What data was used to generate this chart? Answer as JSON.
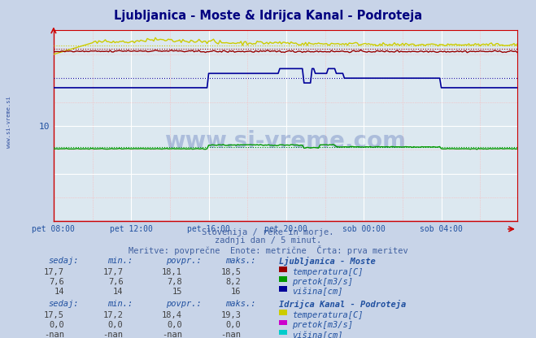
{
  "title": "Ljubljanica - Moste & Idrijca Kanal - Podroteja",
  "title_color": "#000080",
  "bg_color": "#c8d4e8",
  "plot_bg_color": "#dce8f0",
  "watermark_text": "www.si-vreme.com",
  "subtitle1": "Slovenija / reke in morje.",
  "subtitle2": "zadnji dan / 5 minut.",
  "subtitle3": "Meritve: povprečne  Enote: metrične  Črta: prva meritev",
  "subtitle_color": "#4060a0",
  "moste_temp_color": "#990000",
  "moste_pretok_color": "#009900",
  "moste_visina_color": "#000099",
  "idrijca_temp_color": "#cccc00",
  "idrijca_pretok_color": "#cc00cc",
  "idrijca_visina_color": "#00cccc",
  "xlabel_ticks": [
    "pet 08:00",
    "pet 12:00",
    "pet 16:00",
    "pet 20:00",
    "sob 00:00",
    "sob 04:00"
  ],
  "ylim": [
    0,
    20
  ],
  "xlim": [
    0,
    287
  ],
  "n_points": 288,
  "avg_moste_temp": 18.1,
  "avg_moste_pretok": 7.8,
  "avg_moste_visina": 15.0,
  "avg_idrijca_temp": 18.4,
  "avg_idrijca_pretok": 0.0,
  "table_moste_headers": [
    "sedaj:",
    "min.:",
    "povpr.:",
    "maks.:"
  ],
  "table_moste_rows": [
    [
      "17,7",
      "17,7",
      "18,1",
      "18,5"
    ],
    [
      "7,6",
      "7,6",
      "7,8",
      "8,2"
    ],
    [
      "14",
      "14",
      "15",
      "16"
    ]
  ],
  "table_idrijca_rows": [
    [
      "17,5",
      "17,2",
      "18,4",
      "19,3"
    ],
    [
      "0,0",
      "0,0",
      "0,0",
      "0,0"
    ],
    [
      "-nan",
      "-nan",
      "-nan",
      "-nan"
    ]
  ],
  "moste_labels": [
    "temperatura[C]",
    "pretok[m3/s]",
    "višina[cm]"
  ],
  "idrijca_labels": [
    "temperatura[C]",
    "pretok[m3/s]",
    "višina[cm]"
  ]
}
